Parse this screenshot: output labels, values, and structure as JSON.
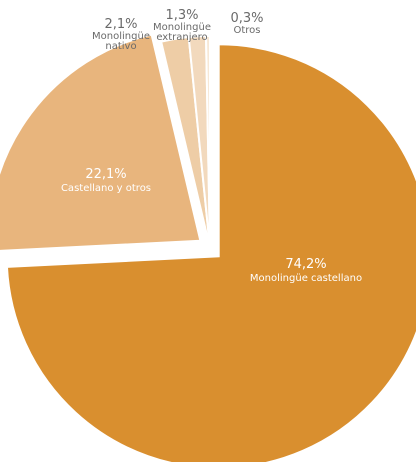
{
  "chart_data": {
    "type": "pie",
    "slices": [
      {
        "value": 74.2,
        "value_label": "74,2%",
        "label": "Monolingüe castellano",
        "color": "#d98f2f"
      },
      {
        "value": 22.1,
        "value_label": "22,1%",
        "label": "Castellano y otros",
        "color": "#e8b57d"
      },
      {
        "value": 2.1,
        "value_label": "2,1%",
        "label": "Monolingüe nativo",
        "label_lines": [
          "Monolingüe",
          "nativo"
        ],
        "color": "#eecda6"
      },
      {
        "value": 1.3,
        "value_label": "1,3%",
        "label": "Monolingüe extranjero",
        "label_lines": [
          "Monolingüe",
          "extranjero"
        ],
        "color": "#f2d9bd"
      },
      {
        "value": 0.3,
        "value_label": "0,3%",
        "label": "Otros",
        "color": "#f7e8d6"
      }
    ]
  }
}
